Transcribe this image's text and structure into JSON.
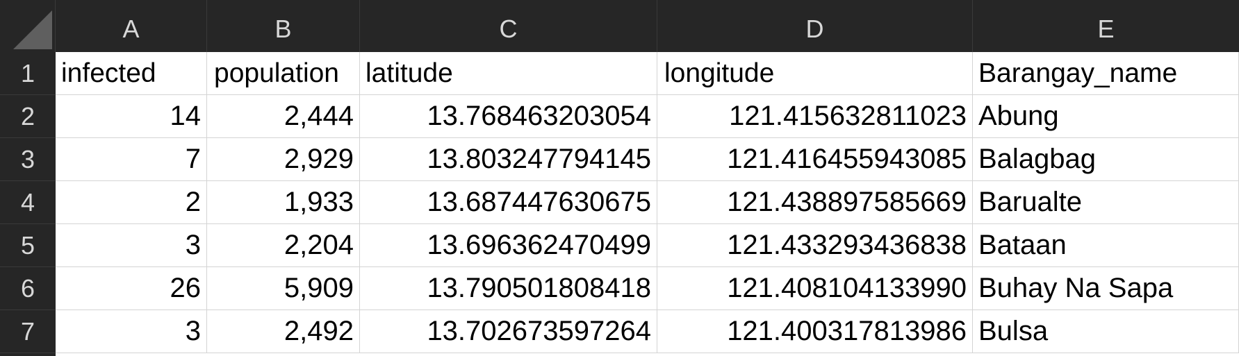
{
  "columns": [
    "A",
    "B",
    "C",
    "D",
    "E"
  ],
  "rows": [
    "1",
    "2",
    "3",
    "4",
    "5",
    "6",
    "7"
  ],
  "header_row": [
    "infected",
    "population",
    "latitude",
    "longitude",
    "Barangay_name"
  ],
  "data_rows": [
    [
      "14",
      "2,444",
      "13.768463203054",
      "121.415632811023",
      "Abung"
    ],
    [
      "7",
      "2,929",
      "13.803247794145",
      "121.416455943085",
      "Balagbag"
    ],
    [
      "2",
      "1,933",
      "13.687447630675",
      "121.438897585669",
      "Barualte"
    ],
    [
      "3",
      "2,204",
      "13.696362470499",
      "121.433293436838",
      "Bataan"
    ],
    [
      "26",
      "5,909",
      "13.790501808418",
      "121.408104133990",
      "Buhay Na Sapa"
    ],
    [
      "3",
      "2,492",
      "13.702673597264",
      "121.400317813986",
      "Bulsa"
    ]
  ],
  "colors": {
    "header_background": "#262626",
    "header_text": "#d8d8d8",
    "grid_line": "#d4d4d4",
    "cell_text": "#000000"
  }
}
